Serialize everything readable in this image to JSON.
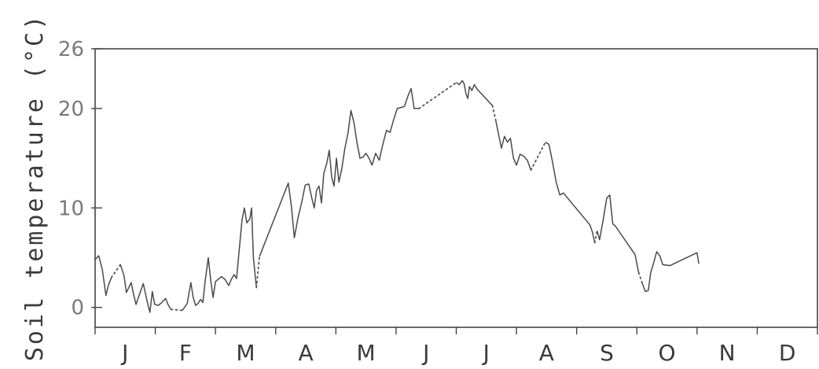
{
  "chart_data": {
    "type": "line",
    "title": "",
    "ylabel": "Soil temperature (°C)",
    "xlabel": "",
    "xlim": [
      0,
      12
    ],
    "ylim": [
      -2,
      26
    ],
    "yticks": [
      0,
      10,
      20,
      26
    ],
    "yticklabels": [
      "0",
      "10",
      "20",
      "26"
    ],
    "months": [
      "J",
      "F",
      "M",
      "A",
      "M",
      "J",
      "J",
      "A",
      "S",
      "O",
      "N",
      "D"
    ],
    "grid": false,
    "legend": "none",
    "line_color": "#4a4a4a",
    "series": [
      {
        "points": [
          [
            0.0,
            4.8
          ],
          [
            0.06,
            5.2
          ],
          [
            0.12,
            3.8
          ],
          [
            0.18,
            1.2
          ],
          [
            0.22,
            2.2
          ],
          [
            0.27,
            3.0
          ],
          [
            0.42,
            4.3
          ],
          [
            0.48,
            3.2
          ],
          [
            0.52,
            1.5
          ],
          [
            0.56,
            2.0
          ],
          [
            0.6,
            2.5
          ],
          [
            0.64,
            1.3
          ],
          [
            0.68,
            0.3
          ],
          [
            0.72,
            1.0
          ],
          [
            0.76,
            1.7
          ],
          [
            0.8,
            2.4
          ],
          [
            0.84,
            1.3
          ],
          [
            0.88,
            0.2
          ],
          [
            0.91,
            -0.5
          ],
          [
            0.95,
            1.6
          ],
          [
            0.99,
            0.3
          ],
          [
            1.05,
            0.2
          ],
          [
            1.11,
            0.5
          ],
          [
            1.17,
            0.9
          ],
          [
            1.21,
            0.3
          ],
          [
            1.26,
            -0.2
          ],
          [
            1.45,
            -0.3
          ],
          [
            1.53,
            0.4
          ],
          [
            1.59,
            2.5
          ],
          [
            1.63,
            1.0
          ],
          [
            1.67,
            0.2
          ],
          [
            1.71,
            0.4
          ],
          [
            1.75,
            0.8
          ],
          [
            1.79,
            0.5
          ],
          [
            1.83,
            2.7
          ],
          [
            1.88,
            5.0
          ],
          [
            1.92,
            2.8
          ],
          [
            1.96,
            1.0
          ],
          [
            2.0,
            2.6
          ],
          [
            2.04,
            2.8
          ],
          [
            2.1,
            3.1
          ],
          [
            2.16,
            2.8
          ],
          [
            2.22,
            2.2
          ],
          [
            2.27,
            2.9
          ],
          [
            2.31,
            3.3
          ],
          [
            2.35,
            2.9
          ],
          [
            2.44,
            8.8
          ],
          [
            2.48,
            10.0
          ],
          [
            2.52,
            8.5
          ],
          [
            2.57,
            8.9
          ],
          [
            2.6,
            10.0
          ],
          [
            2.63,
            5.0
          ],
          [
            2.68,
            2.0
          ],
          [
            2.73,
            5.1
          ],
          [
            3.21,
            12.5
          ],
          [
            3.26,
            10.2
          ],
          [
            3.31,
            7.0
          ],
          [
            3.37,
            9.0
          ],
          [
            3.43,
            10.5
          ],
          [
            3.49,
            12.3
          ],
          [
            3.55,
            12.4
          ],
          [
            3.6,
            11.0
          ],
          [
            3.64,
            10.0
          ],
          [
            3.68,
            11.8
          ],
          [
            3.72,
            12.2
          ],
          [
            3.76,
            10.5
          ],
          [
            3.8,
            13.5
          ],
          [
            3.85,
            14.5
          ],
          [
            3.89,
            15.8
          ],
          [
            3.93,
            13.1
          ],
          [
            3.97,
            12.2
          ],
          [
            4.01,
            15.0
          ],
          [
            4.05,
            12.6
          ],
          [
            4.1,
            14.0
          ],
          [
            4.15,
            16.0
          ],
          [
            4.2,
            17.5
          ],
          [
            4.25,
            19.8
          ],
          [
            4.3,
            18.6
          ],
          [
            4.35,
            16.6
          ],
          [
            4.4,
            15.0
          ],
          [
            4.45,
            15.1
          ],
          [
            4.5,
            15.5
          ],
          [
            4.55,
            15.0
          ],
          [
            4.6,
            14.3
          ],
          [
            4.66,
            15.5
          ],
          [
            4.72,
            14.8
          ],
          [
            4.78,
            16.4
          ],
          [
            4.84,
            17.8
          ],
          [
            4.9,
            17.6
          ],
          [
            4.96,
            18.9
          ],
          [
            5.02,
            20.0
          ],
          [
            5.08,
            20.1
          ],
          [
            5.14,
            20.2
          ],
          [
            5.2,
            21.3
          ],
          [
            5.25,
            22.0
          ],
          [
            5.3,
            20.0
          ],
          [
            5.38,
            20.0
          ],
          [
            6.0,
            22.6
          ],
          [
            6.05,
            22.4
          ],
          [
            6.1,
            22.8
          ],
          [
            6.13,
            22.5
          ],
          [
            6.16,
            21.5
          ],
          [
            6.19,
            21.0
          ],
          [
            6.22,
            22.2
          ],
          [
            6.26,
            21.8
          ],
          [
            6.3,
            22.4
          ],
          [
            6.35,
            21.9
          ],
          [
            6.4,
            21.6
          ],
          [
            6.6,
            20.3
          ],
          [
            6.66,
            18.7
          ],
          [
            6.7,
            17.5
          ],
          [
            6.75,
            16.0
          ],
          [
            6.8,
            17.2
          ],
          [
            6.85,
            16.6
          ],
          [
            6.9,
            17.0
          ],
          [
            6.95,
            15.0
          ],
          [
            7.0,
            14.3
          ],
          [
            7.06,
            15.4
          ],
          [
            7.12,
            15.2
          ],
          [
            7.18,
            14.8
          ],
          [
            7.24,
            13.8
          ],
          [
            7.48,
            16.6
          ],
          [
            7.54,
            16.4
          ],
          [
            7.6,
            14.6
          ],
          [
            7.66,
            12.6
          ],
          [
            7.72,
            11.3
          ],
          [
            7.78,
            11.5
          ],
          [
            8.22,
            8.3
          ],
          [
            8.26,
            7.6
          ],
          [
            8.3,
            6.5
          ],
          [
            8.34,
            7.7
          ],
          [
            8.38,
            6.8
          ],
          [
            8.44,
            8.8
          ],
          [
            8.5,
            11.0
          ],
          [
            8.55,
            11.3
          ],
          [
            8.6,
            8.4
          ],
          [
            8.64,
            8.2
          ],
          [
            8.97,
            5.3
          ],
          [
            9.03,
            3.5
          ],
          [
            9.08,
            2.6
          ],
          [
            9.14,
            1.6
          ],
          [
            9.19,
            1.7
          ],
          [
            9.23,
            3.5
          ],
          [
            9.28,
            4.5
          ],
          [
            9.33,
            5.6
          ],
          [
            9.38,
            5.2
          ],
          [
            9.43,
            4.3
          ],
          [
            9.55,
            4.2
          ],
          [
            10.0,
            5.5
          ],
          [
            10.03,
            4.4
          ]
        ],
        "gaps_after": [
          5,
          25,
          52,
          96,
          108,
          120,
          129,
          138,
          149
        ]
      }
    ]
  }
}
